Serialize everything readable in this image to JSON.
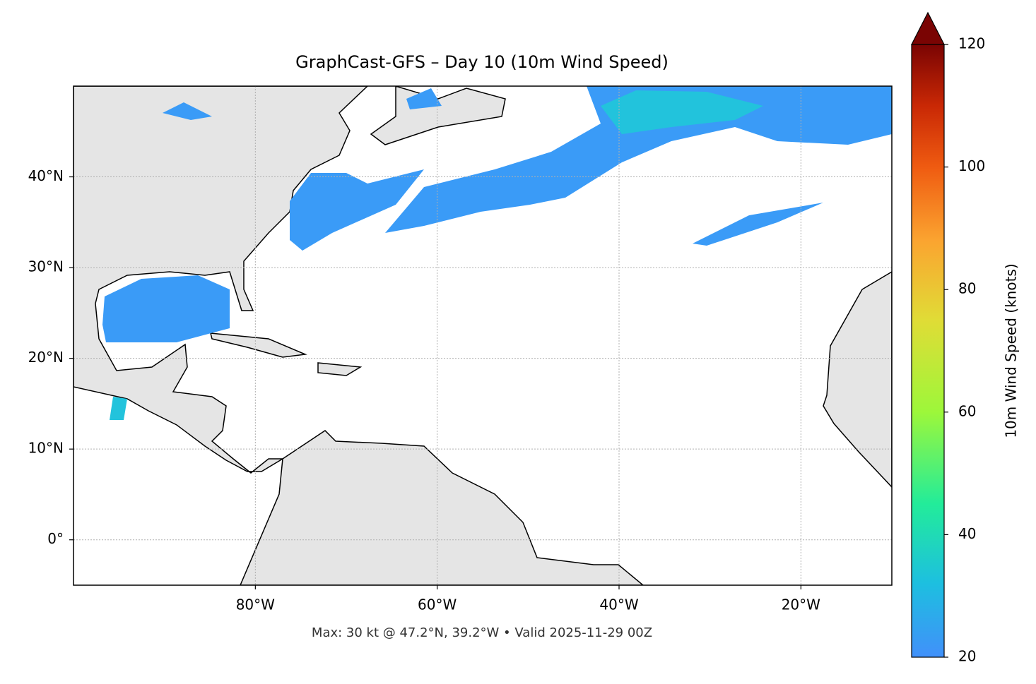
{
  "chart_data": {
    "type": "map",
    "title": "GraphCast-GFS – Day 10 (10m Wind Speed)",
    "footnote": "Max: 30 kt @ 47.2°N, 39.2°W • Valid 2025-11-29 00Z",
    "xlim": [
      -100,
      -10
    ],
    "ylim": [
      -5,
      50
    ],
    "xticks": [
      {
        "value": -80,
        "label": "80°W"
      },
      {
        "value": -60,
        "label": "60°W"
      },
      {
        "value": -40,
        "label": "40°W"
      },
      {
        "value": -20,
        "label": "20°W"
      }
    ],
    "yticks": [
      {
        "value": 0,
        "label": "0°"
      },
      {
        "value": 10,
        "label": "10°N"
      },
      {
        "value": 20,
        "label": "20°N"
      },
      {
        "value": 30,
        "label": "30°N"
      },
      {
        "value": 40,
        "label": "40°N"
      }
    ],
    "grid": true,
    "colorbar": {
      "label": "10m Wind Speed (knots)",
      "lim": [
        20,
        120
      ],
      "ticks": [
        20,
        40,
        60,
        80,
        100,
        120
      ],
      "extend": "max"
    }
  }
}
